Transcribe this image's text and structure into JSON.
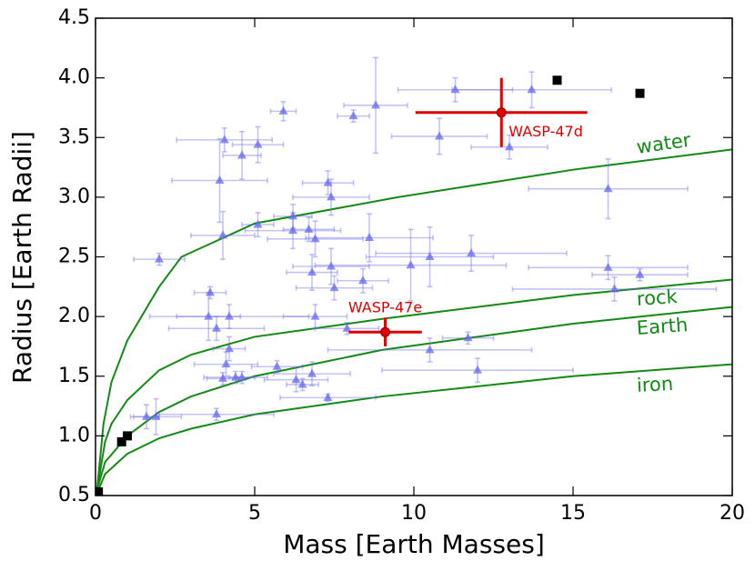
{
  "chart_data": {
    "type": "scatter",
    "xlabel": "Mass [Earth Masses]",
    "ylabel": "Radius [Earth Radii]",
    "xlim": [
      0,
      20
    ],
    "ylim": [
      0.5,
      4.5
    ],
    "xticks": [
      0,
      5,
      10,
      15,
      20
    ],
    "yticks": [
      0.5,
      {
        "value": 1,
        "label": "1.0"
      },
      1.5,
      {
        "value": 2,
        "label": "2.0"
      },
      2.5,
      {
        "value": 3,
        "label": "3.0"
      },
      3.5,
      {
        "value": 4,
        "label": "4.0"
      },
      4.5
    ],
    "series": [
      {
        "type": "errorbar",
        "marker": "triangle",
        "color": "#6868f0",
        "x": [
          2.0,
          3.6,
          3.55,
          3.8,
          4.2,
          4.2,
          4.1,
          4.4,
          4.6,
          4.0,
          3.8,
          1.6,
          1.9,
          3.9,
          4.0,
          4.05,
          4.6,
          5.1,
          5.1,
          5.9,
          6.2,
          6.2,
          6.7,
          6.9,
          6.8,
          6.9,
          5.7,
          6.3,
          6.5,
          6.8,
          7.3,
          7.3,
          7.4,
          7.4,
          7.5,
          8.1,
          8.6,
          8.8,
          8.4,
          9.9,
          10.5,
          10.5,
          10.8,
          11.3,
          11.8,
          11.7,
          12.0,
          13.0,
          13.7,
          16.1,
          16.1,
          16.3,
          17.1,
          7.9
        ],
        "values": [
          2.48,
          2.2,
          2.0,
          1.9,
          2.0,
          1.73,
          1.6,
          1.49,
          1.49,
          1.48,
          1.18,
          1.16,
          1.16,
          3.14,
          2.68,
          3.48,
          3.35,
          3.44,
          2.77,
          3.72,
          2.84,
          2.72,
          2.73,
          2.65,
          2.37,
          2.0,
          1.58,
          1.47,
          1.43,
          1.52,
          1.32,
          3.12,
          3.0,
          2.42,
          2.24,
          3.68,
          2.66,
          3.77,
          2.3,
          2.43,
          2.5,
          1.72,
          3.51,
          3.9,
          2.53,
          1.82,
          1.55,
          3.42,
          3.9,
          3.07,
          2.41,
          2.23,
          2.35,
          1.9
        ],
        "xerr": [
          0.8,
          0.5,
          1.0,
          1.5,
          2.5,
          0.5,
          1.0,
          1.0,
          0.4,
          0.5,
          1.8,
          0.4,
          0.8,
          1.5,
          1.0,
          1.5,
          0.6,
          0.8,
          0.5,
          0.4,
          0.6,
          1.5,
          0.8,
          1.5,
          0.8,
          1.0,
          0.8,
          1.0,
          0.5,
          1.2,
          1.5,
          0.8,
          1.2,
          1.2,
          1.2,
          0.5,
          2.0,
          1.0,
          0.8,
          3.0,
          2.0,
          3.2,
          1.5,
          1.8,
          3.0,
          0.8,
          3.0,
          1.2,
          2.5,
          2.5,
          2.5,
          3.2,
          1.5,
          1.0
        ],
        "yerr": [
          0.05,
          0.05,
          0.2,
          0.1,
          0.1,
          0.1,
          0.1,
          0.05,
          0.05,
          0.05,
          0.05,
          0.1,
          0.15,
          0.35,
          0.2,
          0.1,
          0.2,
          0.15,
          0.1,
          0.08,
          0.1,
          0.15,
          0.1,
          0.15,
          0.15,
          0.1,
          0.05,
          0.1,
          0.05,
          0.1,
          0.03,
          0.1,
          0.15,
          0.15,
          0.1,
          0.05,
          0.2,
          0.4,
          0.1,
          0.3,
          0.25,
          0.1,
          0.15,
          0.1,
          0.15,
          0.05,
          0.1,
          0.1,
          0.15,
          0.25,
          0.1,
          0.1,
          0.05,
          0.05
        ]
      },
      {
        "type": "points",
        "marker": "square",
        "color": "#000000",
        "x": [
          0.09,
          0.82,
          1.0,
          14.5,
          17.1
        ],
        "values": [
          0.53,
          0.95,
          1.0,
          3.98,
          3.87
        ]
      },
      {
        "type": "errorbar",
        "name": "WASP-47d",
        "marker": "circle",
        "color": "#e00000",
        "x": [
          12.75
        ],
        "values": [
          3.71
        ],
        "xerr": [
          2.7
        ],
        "yerr": [
          0.29
        ]
      },
      {
        "type": "errorbar",
        "name": "WASP-47e",
        "marker": "circle",
        "color": "#e00000",
        "x": [
          9.1
        ],
        "values": [
          1.87
        ],
        "xerr": [
          1.15
        ],
        "yerr": [
          0.12
        ]
      },
      {
        "type": "line",
        "name": "water",
        "color": "#138a13",
        "x": [
          0.05,
          0.25,
          0.5,
          1,
          2,
          2.7,
          5,
          9.5,
          15,
          20
        ],
        "values": [
          0.55,
          1.1,
          1.45,
          1.8,
          2.25,
          2.5,
          2.78,
          3.0,
          3.23,
          3.4
        ]
      },
      {
        "type": "line",
        "name": "rock",
        "color": "#138a13",
        "x": [
          0.05,
          0.3,
          0.5,
          1,
          2,
          3,
          5,
          9,
          15,
          20
        ],
        "values": [
          0.55,
          0.95,
          1.1,
          1.3,
          1.55,
          1.68,
          1.83,
          1.98,
          2.18,
          2.31
        ]
      },
      {
        "type": "line",
        "name": "Earth",
        "color": "#138a13",
        "x": [
          0.05,
          0.3,
          1,
          2,
          3,
          5,
          9,
          15,
          20
        ],
        "values": [
          0.55,
          0.78,
          1.0,
          1.2,
          1.33,
          1.5,
          1.72,
          1.94,
          2.08
        ]
      },
      {
        "type": "line",
        "name": "iron",
        "color": "#138a13",
        "x": [
          0.05,
          0.3,
          1,
          2,
          3,
          5,
          9,
          15,
          20
        ],
        "values": [
          0.52,
          0.68,
          0.85,
          0.98,
          1.06,
          1.18,
          1.33,
          1.5,
          1.6
        ]
      }
    ]
  }
}
